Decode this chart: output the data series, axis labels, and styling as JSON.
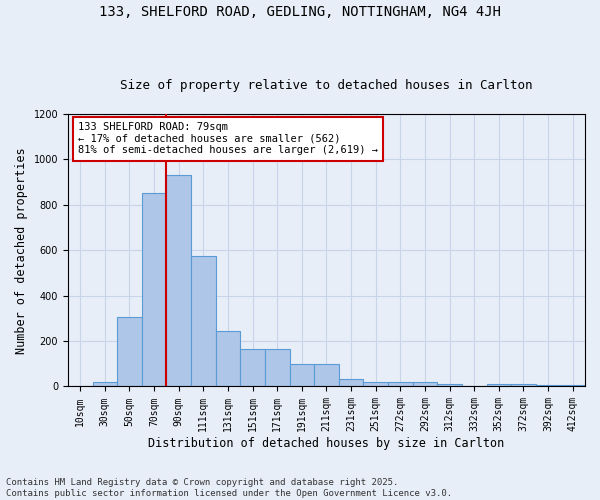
{
  "title_line1": "133, SHELFORD ROAD, GEDLING, NOTTINGHAM, NG4 4JH",
  "title_line2": "Size of property relative to detached houses in Carlton",
  "xlabel": "Distribution of detached houses by size in Carlton",
  "ylabel": "Number of detached properties",
  "categories": [
    "10sqm",
    "30sqm",
    "50sqm",
    "70sqm",
    "90sqm",
    "111sqm",
    "131sqm",
    "151sqm",
    "171sqm",
    "191sqm",
    "211sqm",
    "231sqm",
    "251sqm",
    "272sqm",
    "292sqm",
    "312sqm",
    "332sqm",
    "352sqm",
    "372sqm",
    "392sqm",
    "412sqm"
  ],
  "values": [
    0,
    20,
    305,
    850,
    930,
    575,
    245,
    163,
    163,
    100,
    100,
    32,
    20,
    20,
    18,
    10,
    0,
    10,
    10,
    5,
    5
  ],
  "bar_color": "#aec6e8",
  "bar_edge_color": "#5b9bd5",
  "bar_edge_width": 0.8,
  "vline_color": "#cc0000",
  "vline_x": 3.5,
  "annotation_text": "133 SHELFORD ROAD: 79sqm\n← 17% of detached houses are smaller (562)\n81% of semi-detached houses are larger (2,619) →",
  "annotation_box_edge_color": "#cc0000",
  "annotation_box_face_color": "#ffffff",
  "ylim": [
    0,
    1200
  ],
  "yticks": [
    0,
    200,
    400,
    600,
    800,
    1000,
    1200
  ],
  "grid_color": "#c8d4e8",
  "bg_color": "#e8eef8",
  "plot_bg_color": "#e8eef8",
  "footer_text": "Contains HM Land Registry data © Crown copyright and database right 2025.\nContains public sector information licensed under the Open Government Licence v3.0.",
  "title_fontsize": 10,
  "subtitle_fontsize": 9,
  "xlabel_fontsize": 8.5,
  "ylabel_fontsize": 8.5,
  "tick_fontsize": 7,
  "annotation_fontsize": 7.5,
  "footer_fontsize": 6.5
}
